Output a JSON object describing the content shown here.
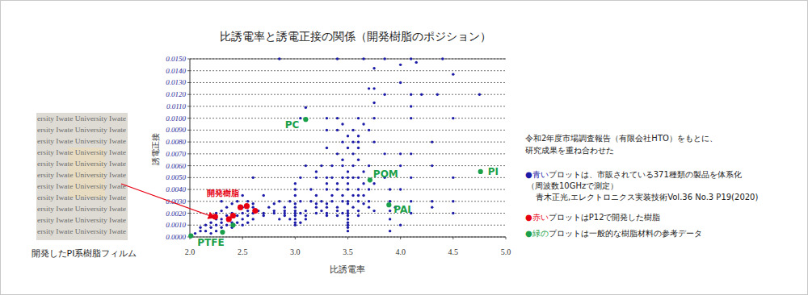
{
  "chart_data": {
    "type": "scatter",
    "title": "比誘電率と誘電正接の関係（開発樹脂のポジション）",
    "x_label": "比誘電率",
    "y_label": "誘電正接",
    "xlim": [
      2,
      5
    ],
    "ylim": [
      0,
      0.015
    ],
    "xticks": [
      {
        "value": 2,
        "label": "2.0"
      },
      2.5,
      {
        "value": 3,
        "label": "3.0"
      },
      3.5,
      {
        "value": 4,
        "label": "4.0"
      },
      4.5,
      {
        "value": 5,
        "label": "5.0"
      }
    ],
    "yticks": [
      {
        "value": 0,
        "label": "0.0000"
      },
      {
        "value": 0.001,
        "label": "0.0010"
      },
      {
        "value": 0.002,
        "label": "0.0020"
      },
      {
        "value": 0.003,
        "label": "0.0030"
      },
      {
        "value": 0.004,
        "label": "0.0040"
      },
      {
        "value": 0.005,
        "label": "0.0050"
      },
      {
        "value": 0.006,
        "label": "0.0060"
      },
      {
        "value": 0.007,
        "label": "0.0070"
      },
      {
        "value": 0.008,
        "label": "0.0080"
      },
      {
        "value": 0.009,
        "label": "0.0090"
      },
      {
        "value": 0.01,
        "label": "0.0100"
      },
      {
        "value": 0.011,
        "label": "0.0110"
      },
      {
        "value": 0.012,
        "label": "0.0120"
      },
      {
        "value": 0.013,
        "label": "0.0130"
      },
      {
        "value": 0.014,
        "label": "0.0140"
      },
      {
        "value": 0.015,
        "label": "0.0150"
      }
    ],
    "grid": true,
    "notes": [
      "令和2年度市場調査報告（有限会社HTO）をもとに、",
      "研究成果を重ね合わせた"
    ],
    "series": [
      {
        "name": "●青いプロットは、市販されている371種類の製品を体系化",
        "details": [
          "（周波数10GHzで測定）",
          "青木正光,エレクトロニクス実装技術Vol.36 No.3 P19(2020)"
        ],
        "color": "#1c1ca8",
        "marker": "circle",
        "x": [
          2.85,
          3.4,
          3.65,
          3.85,
          4.1,
          4.4,
          4.15,
          4.0,
          4.5,
          3.75,
          4.0,
          3.7,
          3.75,
          3.85,
          4.1,
          4.2,
          4.35,
          4.75,
          3.1,
          3.75,
          4.1,
          3.05,
          3.3,
          3.4,
          3.6,
          3.75,
          4.1,
          4.5,
          3.45,
          3.65,
          3.3,
          3.4,
          3.55,
          3.7,
          3.5,
          3.6,
          3.45,
          3.55,
          3.6,
          3.75,
          4.3,
          3.3,
          3.5,
          3.6,
          3.4,
          3.55,
          3.85,
          4.0,
          4.1,
          3.45,
          3.6,
          3.1,
          3.25,
          3.35,
          3.45,
          3.55,
          3.7,
          4.0,
          4.3,
          3.2,
          3.5,
          3.65,
          2.6,
          3.05,
          3.2,
          3.3,
          3.35,
          3.45,
          3.5,
          3.55,
          3.6,
          3.85,
          4.1,
          4.5,
          3.0,
          3.3,
          3.4,
          3.5,
          3.65,
          3.75,
          3.0,
          3.15,
          3.3,
          3.4,
          3.5,
          3.6,
          3.7,
          3.9,
          4.0,
          2.5,
          2.7,
          3.0,
          3.2,
          3.35,
          3.45,
          3.55,
          3.6,
          3.65,
          2.3,
          2.45,
          2.55,
          2.85,
          2.95,
          3.05,
          3.15,
          3.25,
          3.35,
          3.45,
          3.5,
          3.6,
          3.7,
          3.9,
          4.1,
          4.3,
          4.5,
          2.4,
          2.6,
          2.8,
          3.0,
          3.2,
          3.3,
          3.5,
          3.65,
          2.35,
          2.5,
          2.6,
          2.75,
          2.9,
          3.0,
          3.2,
          3.3,
          3.4,
          3.55,
          3.7,
          3.95,
          4.3,
          2.3,
          2.55,
          2.65,
          2.8,
          2.9,
          3.0,
          3.1,
          3.25,
          3.4,
          3.5,
          3.6,
          3.75,
          3.9,
          2.25,
          2.4,
          2.5,
          2.6,
          2.7,
          2.8,
          2.9,
          3.0,
          3.05,
          3.2,
          3.3,
          3.45,
          3.5,
          4.1,
          4.5,
          2.35,
          2.45,
          2.55,
          2.7,
          2.9,
          3.0,
          3.1,
          3.3,
          3.4,
          3.5,
          3.6,
          2.25,
          2.3,
          2.5,
          2.6,
          2.85,
          2.95,
          3.0,
          3.1,
          3.5,
          3.9,
          2.2,
          2.3,
          2.4,
          2.45,
          2.55,
          3.0,
          3.05,
          3.5,
          2.15,
          2.25,
          2.35,
          2.5,
          3.0,
          3.5,
          4.0,
          2.1,
          2.2,
          2.3,
          2.4,
          3.5,
          2.1,
          2.15,
          2.25,
          3.5,
          3.9,
          2.05,
          2.2
        ],
        "values": [
          0.015,
          0.015,
          0.015,
          0.015,
          0.015,
          0.015,
          0.0147,
          0.0145,
          0.0137,
          0.0142,
          0.013,
          0.0125,
          0.0125,
          0.012,
          0.012,
          0.012,
          0.012,
          0.012,
          0.0109,
          0.0113,
          0.011,
          0.01,
          0.01,
          0.01,
          0.01,
          0.01,
          0.01,
          0.01,
          0.0095,
          0.0095,
          0.009,
          0.009,
          0.009,
          0.009,
          0.0085,
          0.0085,
          0.008,
          0.008,
          0.008,
          0.008,
          0.008,
          0.0075,
          0.0075,
          0.0075,
          0.007,
          0.007,
          0.007,
          0.007,
          0.007,
          0.0065,
          0.0065,
          0.006,
          0.006,
          0.006,
          0.006,
          0.006,
          0.006,
          0.006,
          0.006,
          0.0055,
          0.0055,
          0.0055,
          0.005,
          0.005,
          0.005,
          0.005,
          0.005,
          0.005,
          0.005,
          0.005,
          0.005,
          0.005,
          0.005,
          0.005,
          0.0045,
          0.0045,
          0.0045,
          0.0045,
          0.0045,
          0.0045,
          0.004,
          0.004,
          0.004,
          0.004,
          0.004,
          0.004,
          0.004,
          0.004,
          0.004,
          0.0035,
          0.0035,
          0.0035,
          0.0035,
          0.0035,
          0.0035,
          0.0035,
          0.0035,
          0.0035,
          0.003,
          0.003,
          0.003,
          0.003,
          0.003,
          0.003,
          0.003,
          0.003,
          0.003,
          0.003,
          0.003,
          0.003,
          0.003,
          0.003,
          0.003,
          0.003,
          0.003,
          0.0028,
          0.0028,
          0.0028,
          0.0028,
          0.0028,
          0.0028,
          0.0028,
          0.0028,
          0.0025,
          0.0025,
          0.0025,
          0.0025,
          0.0025,
          0.0025,
          0.0025,
          0.0025,
          0.0025,
          0.0025,
          0.0025,
          0.0025,
          0.0025,
          0.0022,
          0.0022,
          0.0022,
          0.0022,
          0.0022,
          0.0022,
          0.0022,
          0.0022,
          0.0022,
          0.0022,
          0.0022,
          0.0022,
          0.0022,
          0.002,
          0.002,
          0.002,
          0.002,
          0.002,
          0.002,
          0.002,
          0.002,
          0.002,
          0.002,
          0.002,
          0.002,
          0.002,
          0.002,
          0.002,
          0.0018,
          0.0018,
          0.0018,
          0.0018,
          0.0018,
          0.0018,
          0.0018,
          0.0018,
          0.0018,
          0.0018,
          0.0018,
          0.0015,
          0.0015,
          0.0015,
          0.0015,
          0.0015,
          0.0015,
          0.0015,
          0.0015,
          0.0015,
          0.0015,
          0.0012,
          0.0012,
          0.0012,
          0.0012,
          0.0012,
          0.0012,
          0.0012,
          0.0012,
          0.001,
          0.001,
          0.001,
          0.001,
          0.001,
          0.001,
          0.001,
          0.0008,
          0.0008,
          0.0008,
          0.0008,
          0.0008,
          0.0005,
          0.0005,
          0.0005,
          0.0005,
          0.0005,
          0.0003,
          0.0003
        ]
      },
      {
        "name": "●赤いプロットはP12で開発した樹脂",
        "annotation": "開発樹脂",
        "color": "#e60012",
        "marker": "circle",
        "x": [
          2.24,
          2.37,
          2.41,
          2.48,
          2.54,
          2.62
        ],
        "values": [
          0.0017,
          0.0015,
          0.0018,
          0.0025,
          0.0026,
          0.0022
        ]
      },
      {
        "name": "●緑のプロットは一般的な樹脂材料の参考データ",
        "color": "#1aa04a",
        "marker": "circle",
        "x": [
          2.01,
          2.31,
          2.41,
          3.1,
          3.71,
          3.89,
          4.76
        ],
        "values": [
          0.0001,
          0.0004,
          0.001,
          0.0099,
          0.0048,
          0.0027,
          0.0055
        ],
        "labels": [
          "PTFE",
          null,
          null,
          "PC",
          "POM",
          "PAI",
          "PI"
        ]
      }
    ]
  },
  "photo": {
    "text": "ersity Iwate University Iwate",
    "caption": "開発したPI系樹脂フィルム"
  }
}
